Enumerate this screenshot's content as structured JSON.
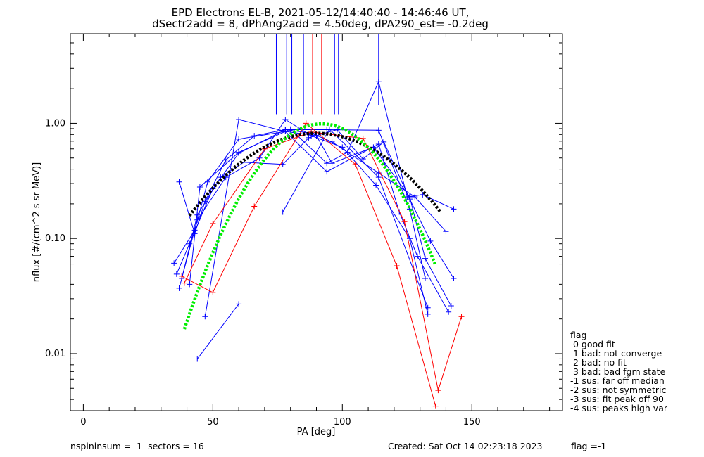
{
  "chart_data": {
    "type": "line",
    "title_line1": "EPD Electrons EL-B, 2021-05-12/14:40:40 - 14:46:46 UT,",
    "title_line2": "dSectr2add = 8, dPhAng2add = 4.50deg, dPA290_est=  -0.2deg",
    "xlabel": "PA [deg]",
    "ylabel": "nflux [#/(cm^2 s sr MeV)]",
    "xlim": [
      -5,
      185
    ],
    "ylim": [
      0.0032,
      6.0
    ],
    "yscale": "log",
    "x_ticks": [
      0,
      50,
      100,
      150
    ],
    "x_tick_labels": [
      "0",
      "50",
      "100",
      "150"
    ],
    "y_ticks": [
      0.01,
      0.1,
      1.0
    ],
    "y_tick_labels": [
      "0.01",
      "0.10",
      "1.00"
    ],
    "series": [
      {
        "color": "#0000ff",
        "points": [
          [
            35,
            0.061
          ],
          [
            43,
            0.118
          ],
          [
            48,
            0.31
          ],
          [
            60,
            0.73
          ],
          [
            78,
            0.85
          ],
          [
            90,
            0.78
          ],
          [
            96,
            0.45
          ],
          [
            112,
            0.62
          ],
          [
            126,
            0.23
          ],
          [
            132,
            0.067
          ],
          [
            142,
            0.026
          ]
        ]
      },
      {
        "color": "#0000ff",
        "points": [
          [
            36,
            0.049
          ],
          [
            41,
            0.09
          ],
          [
            50,
            0.27
          ],
          [
            60,
            0.55
          ],
          [
            78,
            0.88
          ],
          [
            88,
            0.82
          ],
          [
            96,
            0.69
          ],
          [
            114,
            0.37
          ],
          [
            128,
            0.23
          ],
          [
            140,
            0.115
          ]
        ]
      },
      {
        "color": "#0000ff",
        "points": [
          [
            37,
            0.037
          ],
          [
            44,
            0.145
          ],
          [
            55,
            0.34
          ],
          [
            68,
            0.5
          ],
          [
            78,
            1.08
          ],
          [
            88,
            0.78
          ],
          [
            100,
            0.62
          ],
          [
            113,
            0.29
          ],
          [
            126,
            0.1
          ],
          [
            133,
            0.022
          ]
        ]
      },
      {
        "color": "#0000ff",
        "points": [
          [
            37,
            0.31
          ],
          [
            43,
            0.11
          ],
          [
            47,
            0.21
          ],
          [
            55,
            0.48
          ],
          [
            66,
            0.78
          ],
          [
            78,
            0.88
          ],
          [
            94,
            0.88
          ],
          [
            114,
            0.87
          ],
          [
            126,
            0.18
          ],
          [
            132,
            0.045
          ]
        ]
      },
      {
        "color": "#0000ff",
        "points": [
          [
            38,
            0.045
          ],
          [
            44,
            0.16
          ],
          [
            53,
            0.34
          ],
          [
            62,
            0.46
          ],
          [
            77,
            0.44
          ],
          [
            87,
            0.75
          ],
          [
            98,
            0.88
          ],
          [
            108,
            0.49
          ],
          [
            116,
            0.69
          ],
          [
            126,
            0.22
          ],
          [
            134,
            0.095
          ],
          [
            143,
            0.045
          ]
        ]
      },
      {
        "color": "#0000ff",
        "points": [
          [
            41,
            0.04
          ],
          [
            45,
            0.28
          ],
          [
            60,
            0.56
          ],
          [
            80,
            0.89
          ],
          [
            94,
            0.45
          ],
          [
            102,
            0.56
          ],
          [
            114,
            2.3
          ],
          [
            125,
            0.23
          ],
          [
            131,
            0.24
          ],
          [
            143,
            0.18
          ]
        ]
      },
      {
        "color": "#0000ff",
        "points": [
          [
            44,
            0.009
          ],
          [
            60,
            0.027
          ]
        ]
      },
      {
        "color": "#0000ff",
        "points": [
          [
            47,
            0.021
          ],
          [
            60,
            1.08
          ],
          [
            78,
            0.85
          ],
          [
            94,
            0.38
          ],
          [
            114,
            0.66
          ],
          [
            122,
            0.17
          ],
          [
            129,
            0.07
          ],
          [
            141,
            0.023
          ]
        ]
      },
      {
        "color": "#0000ff",
        "points": [
          [
            77,
            0.17
          ],
          [
            95,
            0.89
          ],
          [
            114,
            0.34
          ],
          [
            133,
            0.025
          ]
        ]
      },
      {
        "color": "#ff0000",
        "points": [
          [
            38,
            0.047
          ],
          [
            50,
            0.034
          ],
          [
            66,
            0.19
          ],
          [
            86,
            1.0
          ],
          [
            105,
            0.44
          ],
          [
            121,
            0.058
          ],
          [
            136,
            0.0035
          ]
        ]
      },
      {
        "color": "#ff0000",
        "points": [
          [
            39,
            0.041
          ],
          [
            50,
            0.135
          ],
          [
            70,
            0.6
          ],
          [
            88,
            0.84
          ],
          [
            108,
            0.74
          ],
          [
            124,
            0.14
          ],
          [
            137,
            0.0048
          ],
          [
            146,
            0.021
          ]
        ]
      }
    ],
    "spike_lines": [
      {
        "x": 74.5,
        "y_bottom": 1.2,
        "color": "#0000ff"
      },
      {
        "x": 78.5,
        "y_bottom": 1.2,
        "color": "#0000ff"
      },
      {
        "x": 80.5,
        "y_bottom": 1.2,
        "color": "#0000ff"
      },
      {
        "x": 85.0,
        "y_bottom": 1.2,
        "color": "#0000ff"
      },
      {
        "x": 88.5,
        "y_bottom": 1.2,
        "color": "#ff0000"
      },
      {
        "x": 92.0,
        "y_bottom": 1.2,
        "color": "#ff0000"
      },
      {
        "x": 97.0,
        "y_bottom": 1.2,
        "color": "#0000ff"
      },
      {
        "x": 98.5,
        "y_bottom": 1.2,
        "color": "#0000ff"
      },
      {
        "x": 114.0,
        "y_bottom": 1.45,
        "color": "#0000ff"
      }
    ],
    "fit_curves": [
      {
        "color": "#000000",
        "peak_x": 90,
        "peak_y": 0.82,
        "sigma": 27,
        "x_range": [
          41,
          138
        ]
      },
      {
        "color": "#00ee00",
        "peak_x": 92,
        "peak_y": 0.99,
        "sigma": 18.5,
        "x_range": [
          39,
          136
        ]
      }
    ],
    "legend_title": "flag",
    "legend_lines": [
      " 0 good fit",
      " 1 bad: not converge",
      " 2 bad: no fit",
      " 3 bad: bad fgm state",
      "-1 sus: far off median",
      "-2 sus: not symmetric",
      "-3 sus: fit peak off 90",
      "-4 sus: peaks high var"
    ]
  },
  "footer": {
    "left": "nspininsum =  1  sectors = 16",
    "created": "Created: Sat Oct 14 02:23:18 2023",
    "flag": "flag =-1"
  }
}
